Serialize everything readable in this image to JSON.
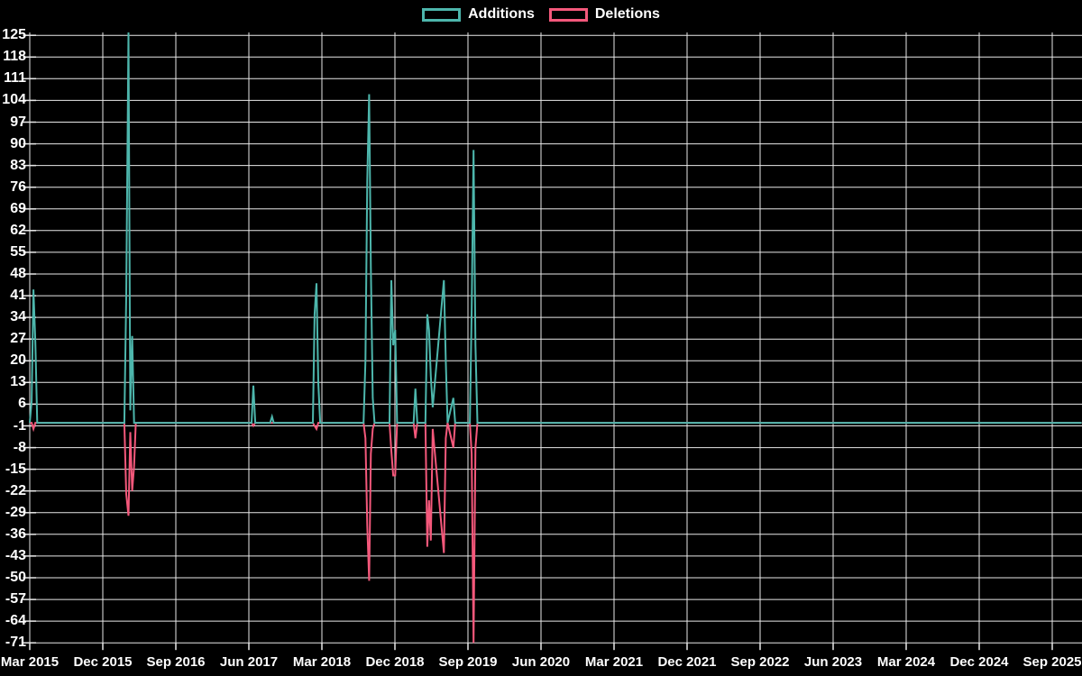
{
  "legend": {
    "items": [
      {
        "label": "Additions",
        "color": "#4db6ac"
      },
      {
        "label": "Deletions",
        "color": "#f4587b"
      }
    ]
  },
  "colors": {
    "background": "#000000",
    "grid": "#e8e8e8",
    "text": "#ffffff",
    "additions": "#4db6ac",
    "deletions": "#f4587b"
  },
  "chart_data": {
    "type": "line",
    "title": "",
    "xlabel": "",
    "ylabel": "",
    "grid": true,
    "legend_position": "top-center",
    "x_tick_labels": [
      "Mar 2015",
      "Dec 2015",
      "Sep 2016",
      "Jun 2017",
      "Mar 2018",
      "Dec 2018",
      "Sep 2019",
      "Jun 2020",
      "Mar 2021",
      "Dec 2021",
      "Sep 2022",
      "Jun 2023",
      "Mar 2024",
      "Dec 2024",
      "Sep 2025"
    ],
    "x_tick_interval_months": 9,
    "x_range": [
      "2015-03-01",
      "2025-12-20"
    ],
    "y_ticks": [
      125,
      118,
      111,
      104,
      97,
      90,
      83,
      76,
      69,
      62,
      55,
      48,
      41,
      34,
      27,
      20,
      13,
      6,
      -1,
      -8,
      -15,
      -22,
      -29,
      -36,
      -43,
      -50,
      -57,
      -64,
      -71
    ],
    "ylim": [
      -71,
      125
    ],
    "note": "Additions peak in Mar 2016 exceeds top of axis (clipped ~126); Deletions spike Sep 2019 reaches bottom (-71)",
    "series": [
      {
        "name": "Additions",
        "color": "#4db6ac",
        "points": [
          [
            "2015-03-01",
            0
          ],
          [
            "2015-03-08",
            7
          ],
          [
            "2015-03-15",
            43
          ],
          [
            "2015-03-22",
            26
          ],
          [
            "2015-03-29",
            0
          ],
          [
            "2016-02-21",
            0
          ],
          [
            "2016-02-28",
            41
          ],
          [
            "2016-03-06",
            126
          ],
          [
            "2016-03-13",
            4
          ],
          [
            "2016-03-20",
            28
          ],
          [
            "2016-03-27",
            0
          ],
          [
            "2017-06-11",
            0
          ],
          [
            "2017-06-18",
            12
          ],
          [
            "2017-06-25",
            0
          ],
          [
            "2017-08-20",
            0
          ],
          [
            "2017-08-27",
            2
          ],
          [
            "2017-09-03",
            0
          ],
          [
            "2018-01-28",
            0
          ],
          [
            "2018-02-04",
            35
          ],
          [
            "2018-02-11",
            45
          ],
          [
            "2018-02-18",
            13
          ],
          [
            "2018-02-25",
            0
          ],
          [
            "2018-08-05",
            0
          ],
          [
            "2018-08-12",
            20
          ],
          [
            "2018-08-19",
            78
          ],
          [
            "2018-08-26",
            106
          ],
          [
            "2018-09-02",
            50
          ],
          [
            "2018-09-09",
            8
          ],
          [
            "2018-09-16",
            0
          ],
          [
            "2018-11-11",
            0
          ],
          [
            "2018-11-18",
            46
          ],
          [
            "2018-11-25",
            25
          ],
          [
            "2018-12-02",
            30
          ],
          [
            "2018-12-09",
            0
          ],
          [
            "2019-02-10",
            0
          ],
          [
            "2019-02-17",
            11
          ],
          [
            "2019-02-24",
            0
          ],
          [
            "2019-03-24",
            0
          ],
          [
            "2019-03-31",
            35
          ],
          [
            "2019-04-07",
            30
          ],
          [
            "2019-04-14",
            15
          ],
          [
            "2019-04-21",
            5
          ],
          [
            "2019-06-02",
            46
          ],
          [
            "2019-06-09",
            20
          ],
          [
            "2019-06-16",
            0
          ],
          [
            "2019-07-07",
            8
          ],
          [
            "2019-07-14",
            0
          ],
          [
            "2019-09-08",
            0
          ],
          [
            "2019-09-15",
            36
          ],
          [
            "2019-09-22",
            88
          ],
          [
            "2019-09-29",
            25
          ],
          [
            "2019-10-06",
            0
          ],
          [
            "2025-12-20",
            0
          ]
        ]
      },
      {
        "name": "Deletions",
        "color": "#f4587b",
        "points": [
          [
            "2015-03-01",
            0
          ],
          [
            "2015-03-08",
            0
          ],
          [
            "2015-03-15",
            -2
          ],
          [
            "2015-03-22",
            0
          ],
          [
            "2016-02-21",
            0
          ],
          [
            "2016-02-28",
            -23
          ],
          [
            "2016-03-06",
            -30
          ],
          [
            "2016-03-13",
            -3
          ],
          [
            "2016-03-20",
            -22
          ],
          [
            "2016-03-27",
            -14
          ],
          [
            "2016-04-03",
            0
          ],
          [
            "2017-06-11",
            0
          ],
          [
            "2017-06-18",
            -1
          ],
          [
            "2017-06-25",
            0
          ],
          [
            "2018-01-28",
            0
          ],
          [
            "2018-02-04",
            -1
          ],
          [
            "2018-02-11",
            -2
          ],
          [
            "2018-02-18",
            0
          ],
          [
            "2018-08-05",
            0
          ],
          [
            "2018-08-12",
            -5
          ],
          [
            "2018-08-19",
            -33
          ],
          [
            "2018-08-26",
            -51
          ],
          [
            "2018-09-02",
            -10
          ],
          [
            "2018-09-09",
            -2
          ],
          [
            "2018-09-16",
            0
          ],
          [
            "2018-11-11",
            0
          ],
          [
            "2018-11-18",
            -9
          ],
          [
            "2018-11-25",
            -17
          ],
          [
            "2018-12-02",
            -17
          ],
          [
            "2018-12-09",
            0
          ],
          [
            "2019-02-10",
            0
          ],
          [
            "2019-02-17",
            -5
          ],
          [
            "2019-02-24",
            0
          ],
          [
            "2019-03-24",
            0
          ],
          [
            "2019-03-31",
            -40
          ],
          [
            "2019-04-07",
            -25
          ],
          [
            "2019-04-14",
            -38
          ],
          [
            "2019-04-21",
            -2
          ],
          [
            "2019-06-02",
            -42
          ],
          [
            "2019-06-09",
            -5
          ],
          [
            "2019-06-16",
            0
          ],
          [
            "2019-07-07",
            -8
          ],
          [
            "2019-07-14",
            0
          ],
          [
            "2019-09-08",
            0
          ],
          [
            "2019-09-15",
            -10
          ],
          [
            "2019-09-22",
            -71
          ],
          [
            "2019-09-29",
            -8
          ],
          [
            "2019-10-06",
            0
          ],
          [
            "2025-12-20",
            0
          ]
        ]
      }
    ]
  }
}
